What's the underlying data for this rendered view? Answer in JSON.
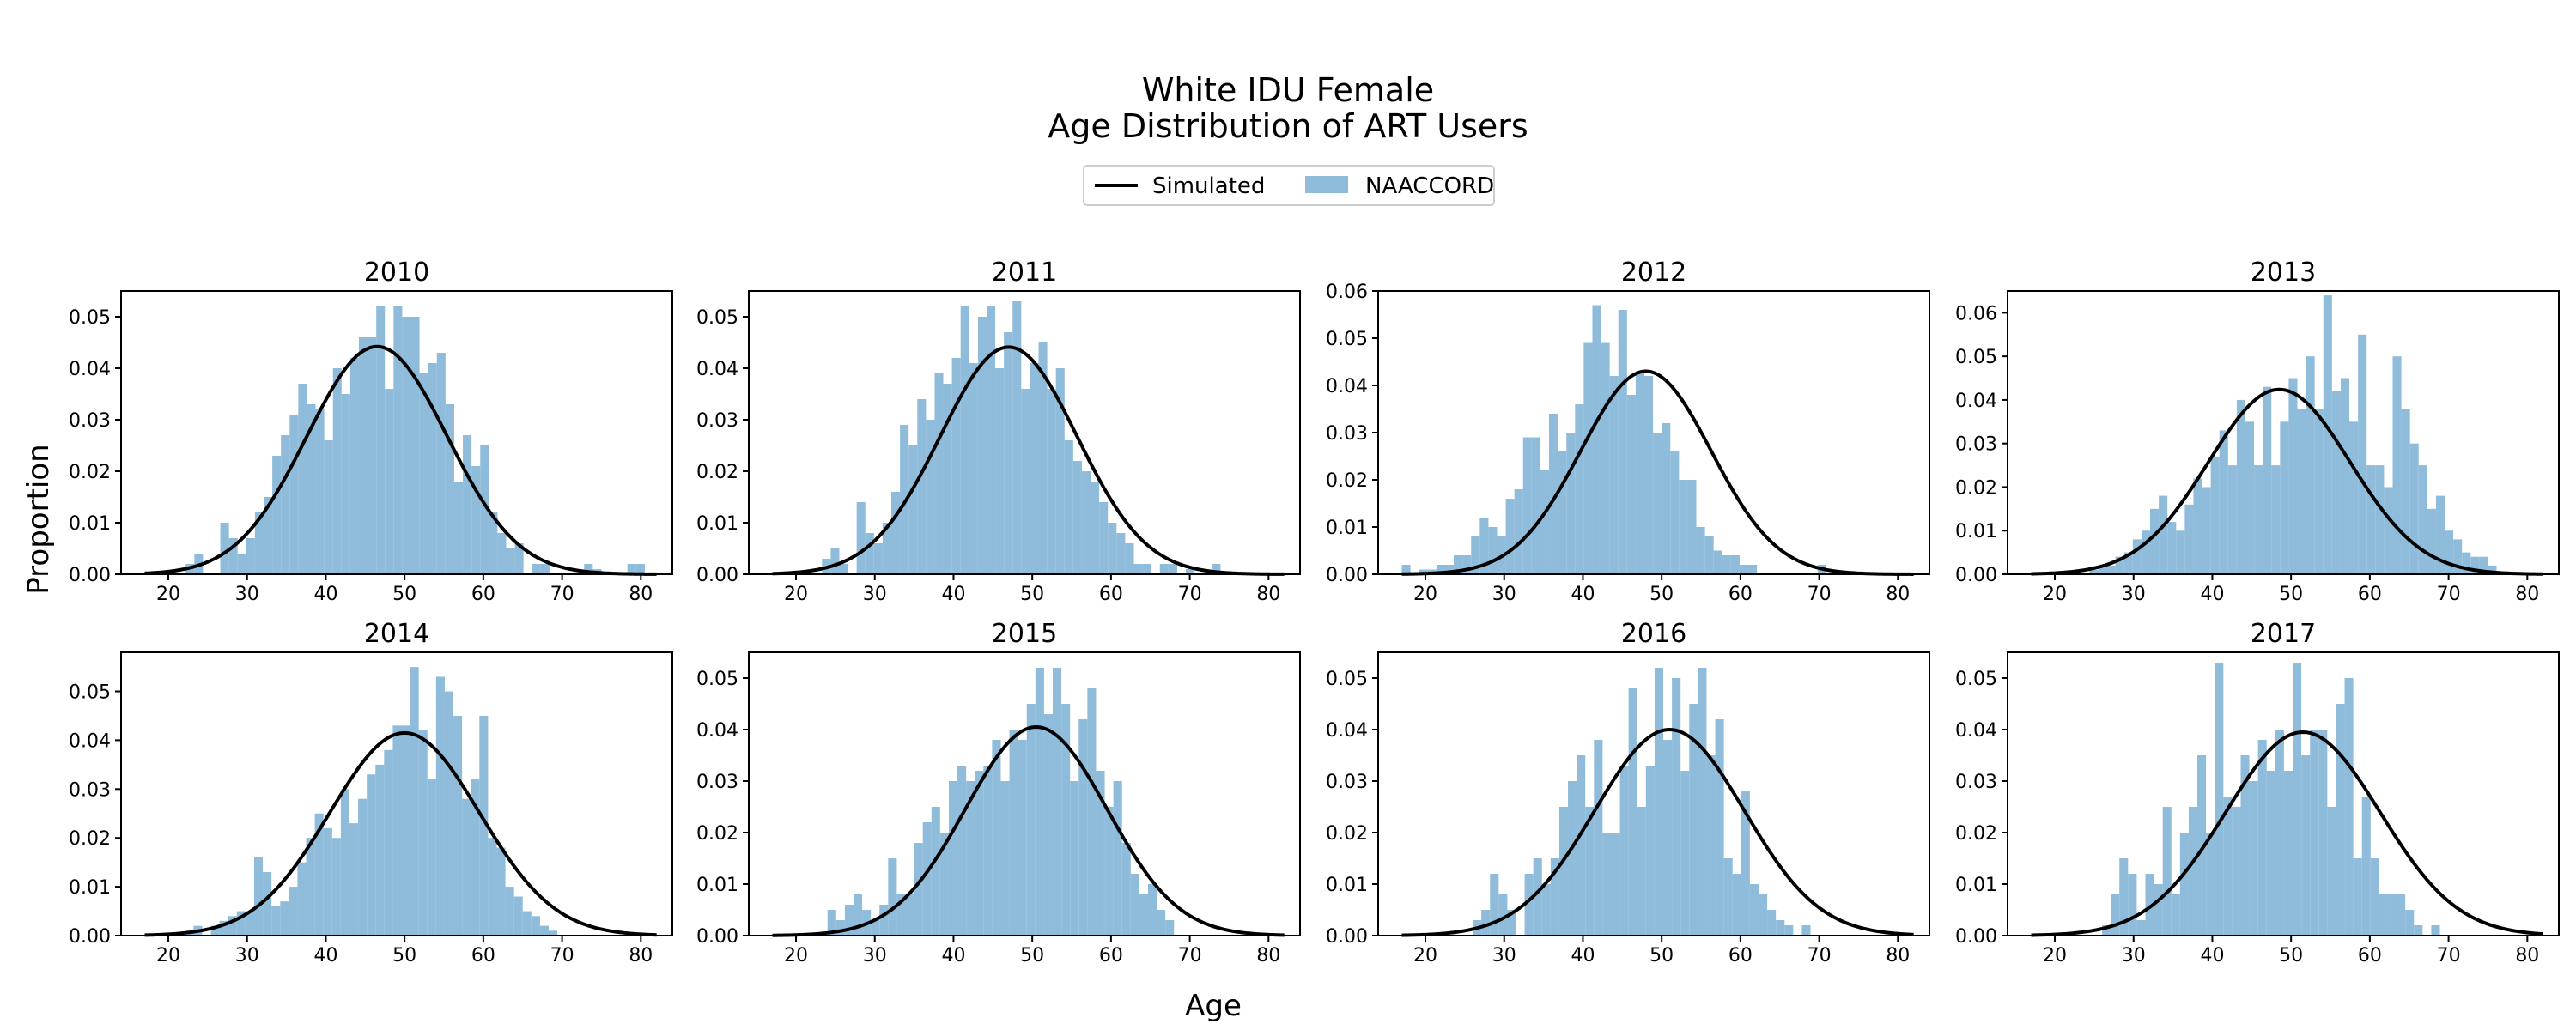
{
  "figure": {
    "title_line1": "White IDU Female",
    "title_line2": "Age Distribution of ART Users",
    "ylabel": "Proportion",
    "xlabel": "Age",
    "legend": {
      "line_label": "Simulated",
      "bar_label": "NAACCORD",
      "placement": "top-center"
    },
    "colors": {
      "bars": "#8fbcdb",
      "line": "#000000"
    }
  },
  "chart_data": [
    {
      "type": "bar",
      "title": "2010",
      "xlim": [
        14,
        84
      ],
      "ylim": [
        0,
        0.055
      ],
      "xticks": [
        20,
        30,
        40,
        50,
        60,
        70,
        80
      ],
      "yticks": [
        0.0,
        0.01,
        0.02,
        0.03,
        0.04,
        0.05
      ],
      "bins": {
        "start": 20,
        "width": 1.1
      },
      "values": [
        0,
        0,
        0.002,
        0.004,
        0,
        0,
        0.01,
        0.007,
        0.004,
        0.007,
        0.012,
        0.015,
        0.023,
        0.027,
        0.031,
        0.037,
        0.033,
        0.032,
        0.026,
        0.04,
        0.035,
        0.042,
        0.046,
        0.046,
        0.052,
        0.036,
        0.052,
        0.05,
        0.05,
        0.039,
        0.041,
        0.043,
        0.033,
        0.018,
        0.027,
        0.021,
        0.025,
        0.012,
        0.008,
        0.005,
        0.006,
        0,
        0.002,
        0.002,
        0,
        0,
        0,
        0,
        0.002,
        0.001,
        0,
        0,
        0,
        0.002,
        0.002,
        0
      ],
      "curve": {
        "mean": 46.5,
        "sd": 8.9,
        "peak": 0.0442,
        "range": [
          17,
          82
        ]
      }
    },
    {
      "type": "bar",
      "title": "2011",
      "xlim": [
        14,
        84
      ],
      "ylim": [
        0,
        0.055
      ],
      "xticks": [
        20,
        30,
        40,
        50,
        60,
        70,
        80
      ],
      "yticks": [
        0.0,
        0.01,
        0.02,
        0.03,
        0.04,
        0.05
      ],
      "bins": {
        "start": 20,
        "width": 1.1
      },
      "values": [
        0,
        0,
        0,
        0.003,
        0.005,
        0.002,
        0,
        0.014,
        0.008,
        0.006,
        0.01,
        0.016,
        0.029,
        0.025,
        0.034,
        0.03,
        0.039,
        0.037,
        0.042,
        0.052,
        0.041,
        0.05,
        0.052,
        0.04,
        0.047,
        0.053,
        0.036,
        0.041,
        0.045,
        0.036,
        0.04,
        0.026,
        0.022,
        0.02,
        0.018,
        0.014,
        0.01,
        0.008,
        0.006,
        0.002,
        0.002,
        0,
        0.002,
        0.002,
        0,
        0.001,
        0,
        0,
        0.002,
        0,
        0,
        0,
        0,
        0,
        0,
        0
      ],
      "curve": {
        "mean": 47,
        "sd": 8.7,
        "peak": 0.0441,
        "range": [
          17,
          82
        ]
      }
    },
    {
      "type": "bar",
      "title": "2012",
      "xlim": [
        14,
        84
      ],
      "ylim": [
        0,
        0.06
      ],
      "xticks": [
        20,
        30,
        40,
        50,
        60,
        70,
        80
      ],
      "yticks": [
        0.0,
        0.01,
        0.02,
        0.03,
        0.04,
        0.05,
        0.06
      ],
      "bins": {
        "start": 17,
        "width": 1.1
      },
      "values": [
        0.002,
        0,
        0.001,
        0.001,
        0.002,
        0.002,
        0.004,
        0.004,
        0.008,
        0.012,
        0.01,
        0.008,
        0.016,
        0.018,
        0.029,
        0.029,
        0.022,
        0.034,
        0.026,
        0.03,
        0.036,
        0.049,
        0.057,
        0.049,
        0.042,
        0.056,
        0.038,
        0.043,
        0.042,
        0.03,
        0.032,
        0.026,
        0.02,
        0.02,
        0.01,
        0.008,
        0.005,
        0.004,
        0.004,
        0.002,
        0.002,
        0,
        0,
        0,
        0,
        0,
        0,
        0,
        0.002,
        0,
        0,
        0,
        0,
        0,
        0,
        0
      ],
      "curve": {
        "mean": 48,
        "sd": 8.3,
        "peak": 0.043,
        "range": [
          17,
          82
        ]
      }
    },
    {
      "type": "bar",
      "title": "2013",
      "xlim": [
        14,
        84
      ],
      "ylim": [
        0,
        0.065
      ],
      "xticks": [
        20,
        30,
        40,
        50,
        60,
        70,
        80
      ],
      "yticks": [
        0.0,
        0.01,
        0.02,
        0.03,
        0.04,
        0.05,
        0.06
      ],
      "bins": {
        "start": 20,
        "width": 1.1
      },
      "values": [
        0,
        0,
        0,
        0,
        0.001,
        0.002,
        0.002,
        0.004,
        0.005,
        0.008,
        0.01,
        0.015,
        0.018,
        0.012,
        0.01,
        0.016,
        0.022,
        0.02,
        0.027,
        0.033,
        0.025,
        0.04,
        0.035,
        0.025,
        0.043,
        0.025,
        0.035,
        0.045,
        0.038,
        0.05,
        0.038,
        0.064,
        0.042,
        0.045,
        0.035,
        0.055,
        0.025,
        0.025,
        0.02,
        0.05,
        0.038,
        0.03,
        0.025,
        0.015,
        0.018,
        0.01,
        0.008,
        0.005,
        0.004,
        0.004,
        0.002,
        0,
        0,
        0,
        0,
        0
      ],
      "curve": {
        "mean": 48.5,
        "sd": 9.0,
        "peak": 0.0424,
        "range": [
          17,
          82
        ]
      }
    },
    {
      "type": "bar",
      "title": "2014",
      "xlim": [
        14,
        84
      ],
      "ylim": [
        0,
        0.058
      ],
      "xticks": [
        20,
        30,
        40,
        50,
        60,
        70,
        80
      ],
      "yticks": [
        0.0,
        0.01,
        0.02,
        0.03,
        0.04,
        0.05
      ],
      "bins": {
        "start": 21,
        "width": 1.1
      },
      "values": [
        0,
        0.001,
        0.002,
        0,
        0.002,
        0.003,
        0.004,
        0.005,
        0.005,
        0.016,
        0.013,
        0.006,
        0.007,
        0.01,
        0.015,
        0.02,
        0.025,
        0.022,
        0.02,
        0.03,
        0.023,
        0.028,
        0.033,
        0.035,
        0.038,
        0.043,
        0.043,
        0.055,
        0.042,
        0.032,
        0.053,
        0.05,
        0.045,
        0.028,
        0.032,
        0.045,
        0.02,
        0.018,
        0.01,
        0.008,
        0.005,
        0.004,
        0.002,
        0.001,
        0,
        0,
        0,
        0,
        0,
        0,
        0,
        0,
        0,
        0,
        0
      ],
      "curve": {
        "mean": 50,
        "sd": 9.5,
        "peak": 0.0415,
        "range": [
          17,
          82
        ]
      }
    },
    {
      "type": "bar",
      "title": "2015",
      "xlim": [
        14,
        84
      ],
      "ylim": [
        0,
        0.055
      ],
      "xticks": [
        20,
        30,
        40,
        50,
        60,
        70,
        80
      ],
      "yticks": [
        0.0,
        0.01,
        0.02,
        0.03,
        0.04,
        0.05
      ],
      "bins": {
        "start": 24,
        "width": 1.1
      },
      "values": [
        0.005,
        0.003,
        0.006,
        0.008,
        0.005,
        0.003,
        0.006,
        0.015,
        0.008,
        0.008,
        0.018,
        0.022,
        0.025,
        0.02,
        0.03,
        0.033,
        0.03,
        0.032,
        0.033,
        0.038,
        0.03,
        0.04,
        0.038,
        0.045,
        0.052,
        0.043,
        0.052,
        0.045,
        0.03,
        0.042,
        0.048,
        0.032,
        0.025,
        0.03,
        0.018,
        0.012,
        0.008,
        0.01,
        0.005,
        0.003,
        0,
        0,
        0,
        0,
        0,
        0,
        0,
        0,
        0,
        0,
        0,
        0,
        0,
        0,
        0
      ],
      "curve": {
        "mean": 50.5,
        "sd": 9.0,
        "peak": 0.0405,
        "range": [
          17,
          82
        ]
      }
    },
    {
      "type": "bar",
      "title": "2016",
      "xlim": [
        14,
        84
      ],
      "ylim": [
        0,
        0.055
      ],
      "xticks": [
        20,
        30,
        40,
        50,
        60,
        70,
        80
      ],
      "yticks": [
        0.0,
        0.01,
        0.02,
        0.03,
        0.04,
        0.05
      ],
      "bins": {
        "start": 26,
        "width": 1.1
      },
      "values": [
        0.003,
        0.005,
        0.012,
        0.008,
        0.005,
        0,
        0.012,
        0.015,
        0.01,
        0.015,
        0.025,
        0.03,
        0.035,
        0.025,
        0.038,
        0.02,
        0.02,
        0.033,
        0.048,
        0.025,
        0.033,
        0.052,
        0.038,
        0.05,
        0.032,
        0.045,
        0.052,
        0.035,
        0.042,
        0.015,
        0.012,
        0.028,
        0.01,
        0.008,
        0.005,
        0.003,
        0.002,
        0,
        0.002,
        0,
        0,
        0,
        0,
        0,
        0,
        0,
        0,
        0,
        0,
        0,
        0,
        0,
        0,
        0
      ],
      "curve": {
        "mean": 51,
        "sd": 9.5,
        "peak": 0.04,
        "range": [
          17,
          82
        ]
      }
    },
    {
      "type": "bar",
      "title": "2017",
      "xlim": [
        14,
        84
      ],
      "ylim": [
        0,
        0.055
      ],
      "xticks": [
        20,
        30,
        40,
        50,
        60,
        70,
        80
      ],
      "yticks": [
        0.0,
        0.01,
        0.02,
        0.03,
        0.04,
        0.05
      ],
      "bins": {
        "start": 26,
        "width": 1.1
      },
      "values": [
        0.002,
        0.008,
        0.015,
        0.012,
        0.003,
        0.012,
        0.01,
        0.025,
        0.008,
        0.02,
        0.025,
        0.035,
        0.02,
        0.053,
        0.027,
        0.025,
        0.035,
        0.03,
        0.038,
        0.032,
        0.04,
        0.032,
        0.053,
        0.035,
        0.04,
        0.04,
        0.025,
        0.045,
        0.05,
        0.015,
        0.027,
        0.015,
        0.008,
        0.008,
        0.008,
        0.005,
        0.002,
        0,
        0.002,
        0,
        0,
        0,
        0,
        0,
        0,
        0,
        0,
        0,
        0,
        0,
        0,
        0,
        0,
        0
      ],
      "curve": {
        "mean": 51.5,
        "sd": 9.8,
        "peak": 0.0395,
        "range": [
          17,
          82
        ]
      }
    }
  ]
}
